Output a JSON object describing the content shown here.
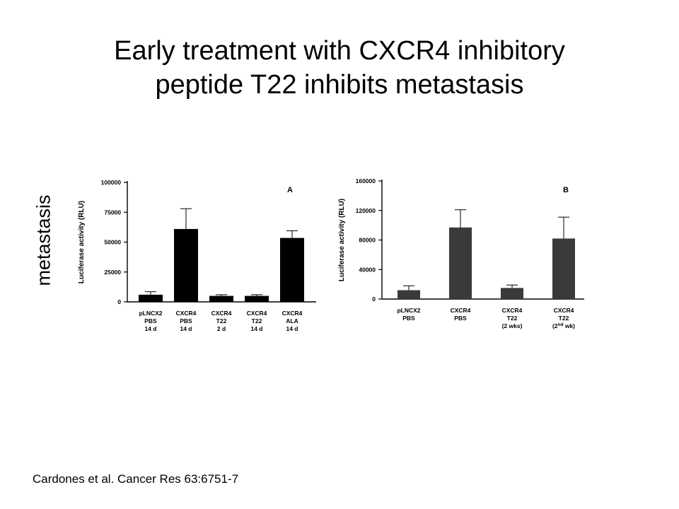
{
  "title": {
    "line1": "Early treatment with CXCR4 inhibitory",
    "line2": "peptide T22 inhibits metastasis"
  },
  "side_label": "metastasis",
  "citation": "Cardones et al. Cancer Res 63:6751-7",
  "chart_data": [
    {
      "type": "bar",
      "panel_label": "A",
      "ylabel": "Luciferase activity (RLU)",
      "xlabel": "",
      "ylim": [
        0,
        100000
      ],
      "yticks": [
        0,
        25000,
        50000,
        75000,
        100000
      ],
      "grid": false,
      "bar_color": "#000000",
      "categories": [
        [
          "pLNCX2",
          "PBS",
          "14 d"
        ],
        [
          "CXCR4",
          "PBS",
          "14 d"
        ],
        [
          "CXCR4",
          "T22",
          "2 d"
        ],
        [
          "CXCR4",
          "T22",
          "14 d"
        ],
        [
          "CXCR4",
          "ALA",
          "14 d"
        ]
      ],
      "values": [
        6000,
        61000,
        5000,
        5000,
        53500
      ],
      "errors": [
        2500,
        17000,
        1000,
        1000,
        6000
      ]
    },
    {
      "type": "bar",
      "panel_label": "B",
      "ylabel": "Luciferase activity (RLU)",
      "xlabel": "",
      "ylim": [
        0,
        160000
      ],
      "yticks": [
        0,
        40000,
        80000,
        120000,
        160000
      ],
      "grid": false,
      "bar_color": "#3a3a3a",
      "categories": [
        [
          "pLNCX2",
          "PBS",
          ""
        ],
        [
          "CXCR4",
          "PBS",
          ""
        ],
        [
          "CXCR4",
          "T22",
          "(2 wks)"
        ],
        [
          "CXCR4",
          "T22",
          "(2nd wk)"
        ]
      ],
      "values": [
        12000,
        97000,
        15000,
        82000
      ],
      "errors": [
        6000,
        24000,
        4000,
        29000
      ]
    }
  ]
}
